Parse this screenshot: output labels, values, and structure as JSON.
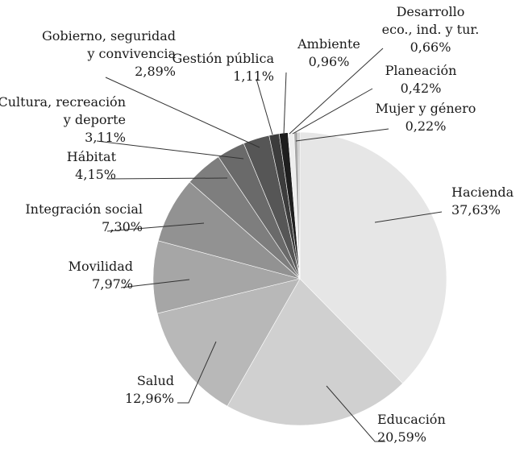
{
  "chart_data": {
    "type": "pie",
    "title": "",
    "slices": [
      {
        "label": [
          "Hacienda"
        ],
        "value_label": "37,63%",
        "value": 37.63,
        "color": "#e6e6e6"
      },
      {
        "label": [
          "Educación"
        ],
        "value_label": "20,59%",
        "value": 20.59,
        "color": "#d0d0d0"
      },
      {
        "label": [
          "Salud"
        ],
        "value_label": "12,96%",
        "value": 12.96,
        "color": "#b8b8b8"
      },
      {
        "label": [
          "Movilidad"
        ],
        "value_label": "7,97%",
        "value": 7.97,
        "color": "#a6a6a6"
      },
      {
        "label": [
          "Integración social"
        ],
        "value_label": "7,30%",
        "value": 7.3,
        "color": "#929292"
      },
      {
        "label": [
          "Hábitat"
        ],
        "value_label": "4,15%",
        "value": 4.15,
        "color": "#7e7e7e"
      },
      {
        "label": [
          "Cultura, recreación",
          "y deporte"
        ],
        "value_label": "3,11%",
        "value": 3.11,
        "color": "#6a6a6a"
      },
      {
        "label": [
          "Gobierno, seguridad",
          "y convivencia"
        ],
        "value_label": "2,89%",
        "value": 2.89,
        "color": "#565656"
      },
      {
        "label": [
          "Gestión pública"
        ],
        "value_label": "1,11%",
        "value": 1.11,
        "color": "#3c3c3c"
      },
      {
        "label": [
          "Ambiente"
        ],
        "value_label": "0,96%",
        "value": 0.96,
        "color": "#1e1e1e"
      },
      {
        "label": [
          "Desarrollo",
          "eco., ind. y tur."
        ],
        "value_label": "0,66%",
        "value": 0.66,
        "color": "#eeeeee"
      },
      {
        "label": [
          "Planeación"
        ],
        "value_label": "0,42%",
        "value": 0.42,
        "color": "#a9a9a9"
      },
      {
        "label": [
          "Mujer y género"
        ],
        "value_label": "0,22%",
        "value": 0.22,
        "color": "#c8c8c8"
      }
    ]
  }
}
